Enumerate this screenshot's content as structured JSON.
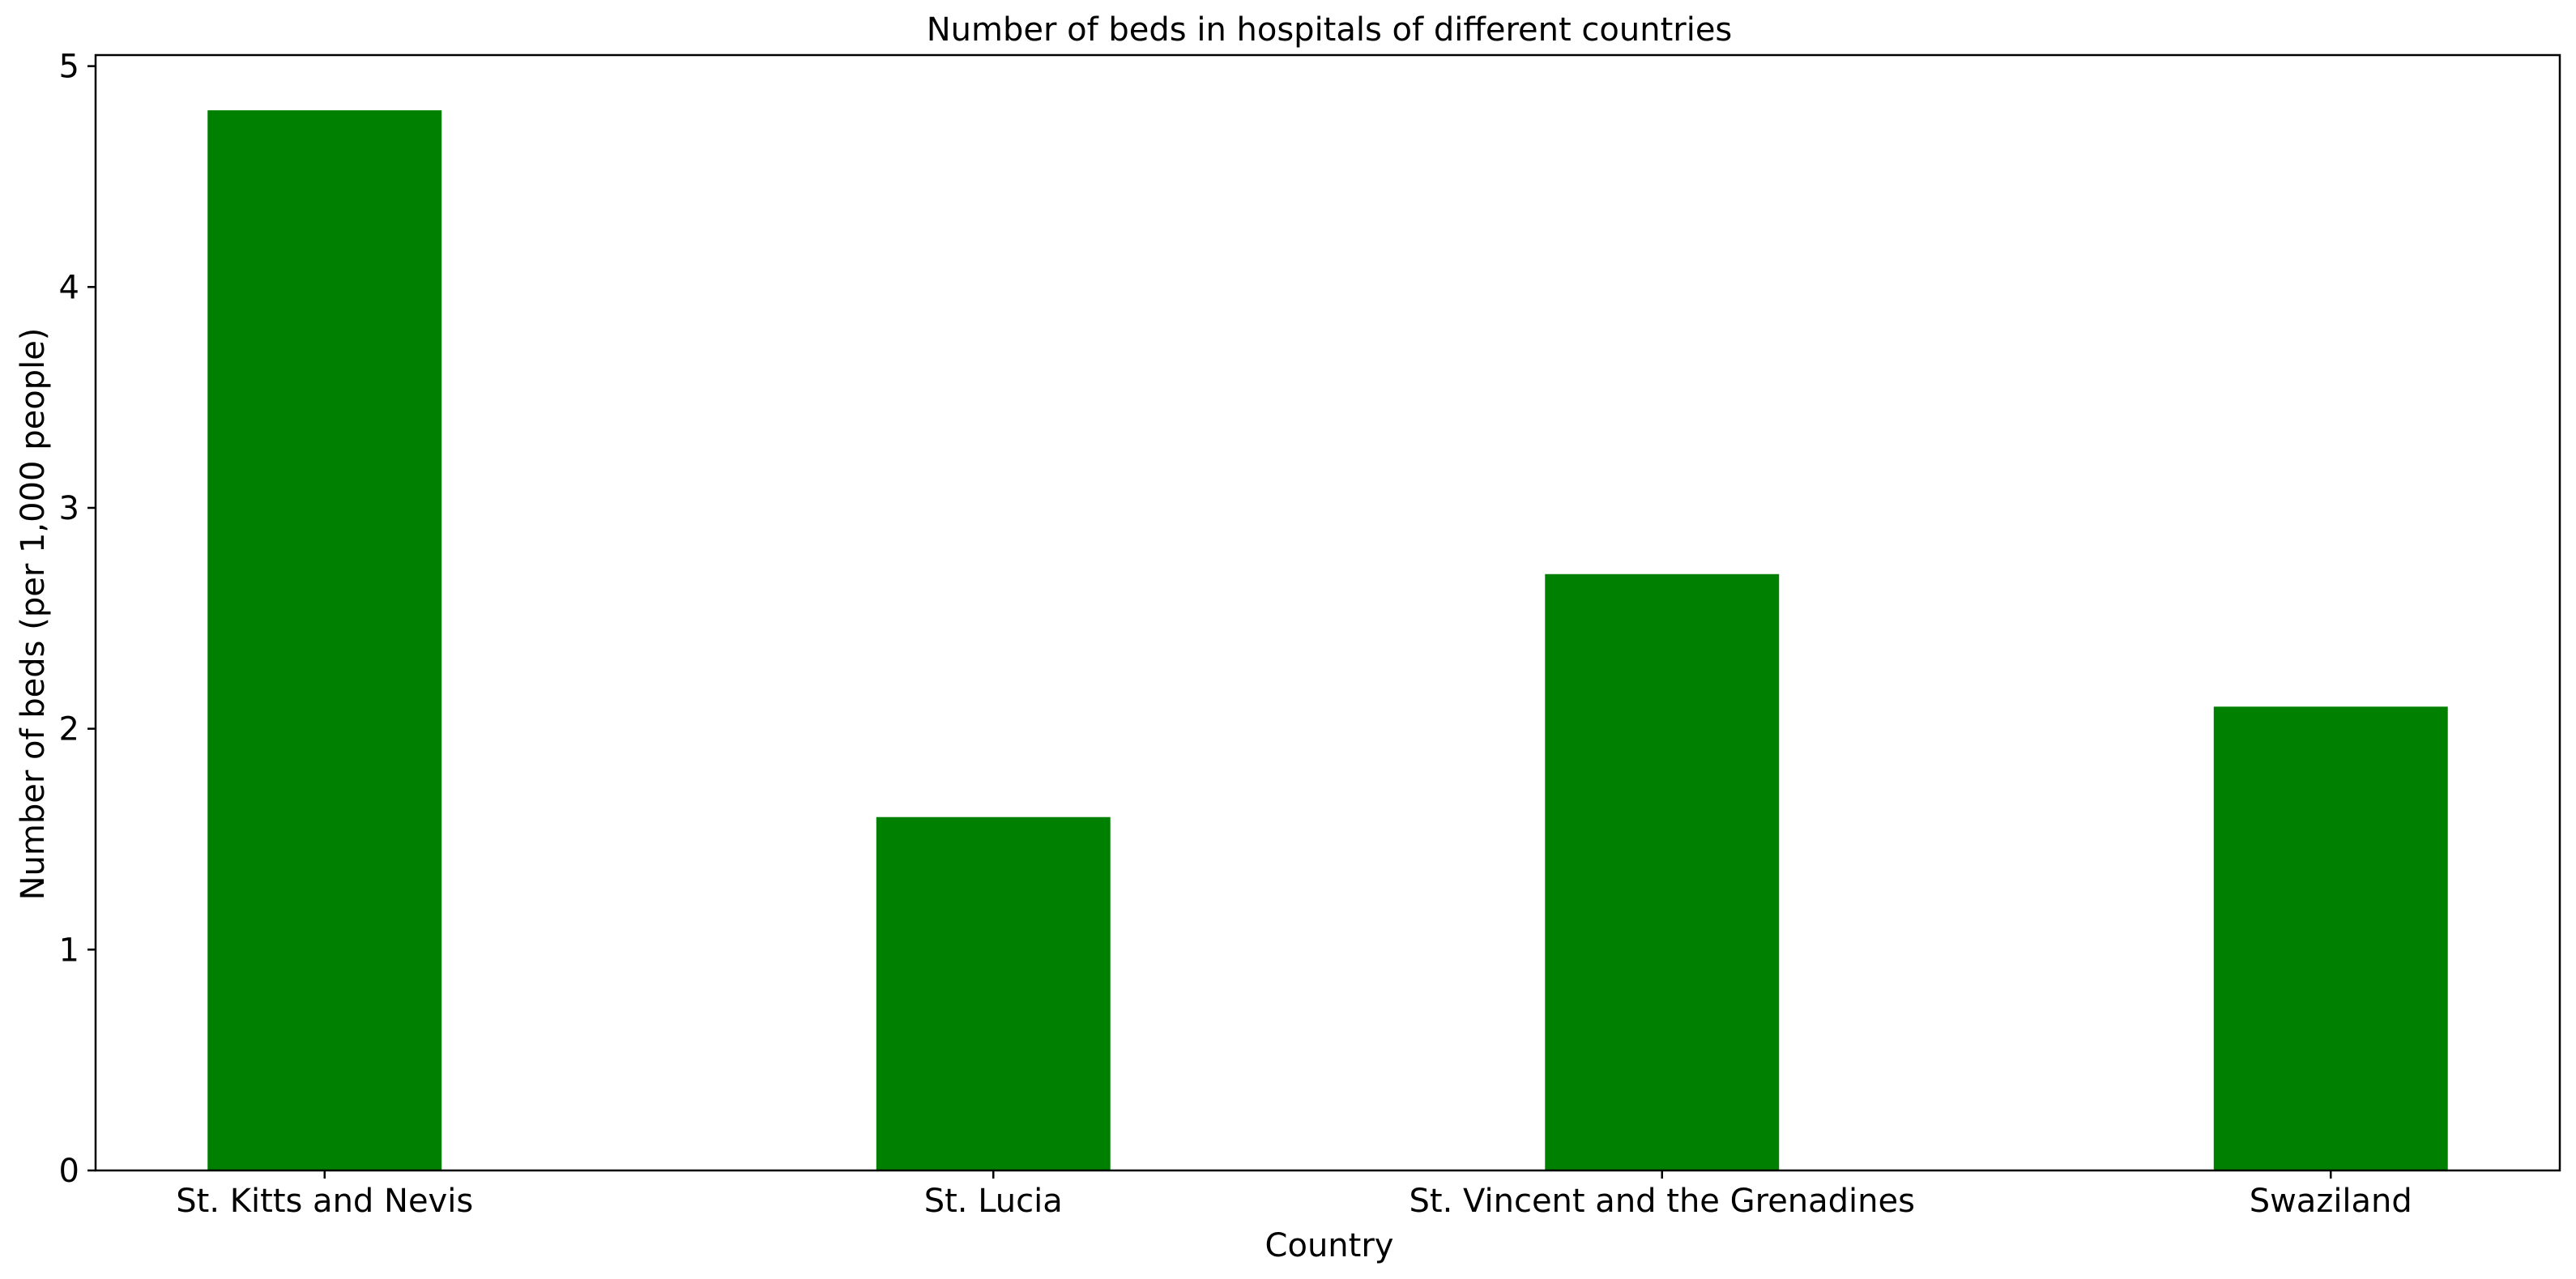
{
  "chart_data": {
    "type": "bar",
    "title": "Number of beds in hospitals of different countries",
    "xlabel": "Country",
    "ylabel": "Number of beds (per 1,000 people)",
    "categories": [
      "St. Kitts and Nevis",
      "St. Lucia",
      "St. Vincent and the Grenadines",
      "Swaziland"
    ],
    "values": [
      4.8,
      1.6,
      2.7,
      2.1
    ],
    "ylim": [
      0,
      5.05
    ],
    "yticks": [
      0,
      1,
      2,
      3,
      4,
      5
    ],
    "grid": false,
    "legend": "none",
    "colors": {
      "bar": "#008000"
    }
  }
}
